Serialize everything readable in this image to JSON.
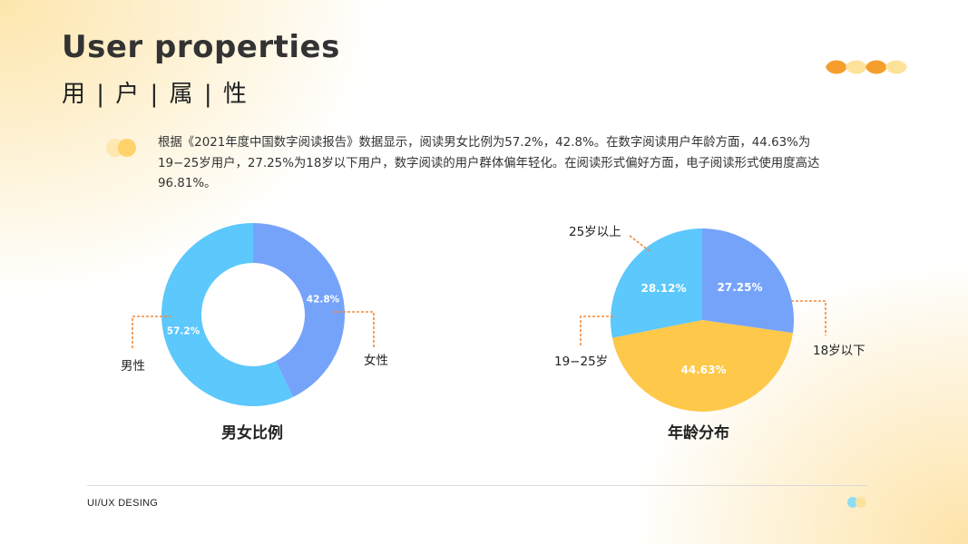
{
  "header": {
    "title_en": "User properties",
    "title_cn": "用 | 户 | 属 | 性"
  },
  "description": "根据《2021年度中国数字阅读报告》数据显示，阅读男女比例为57.2%，42.8%。在数字阅读用户年龄方面，44.63%为19−25岁用户，27.25%为18岁以下用户，数字阅读的用户群体偏年轻化。在阅读形式偏好方面，电子阅读形式使用度高达96.81%。",
  "footer": {
    "text": "UI/UX DESING"
  },
  "colors": {
    "blue": "#76a3fa",
    "cyan": "#5cc8fc",
    "yellow": "#fec84a",
    "leader": "#f08a3c",
    "deco_orange": "#f59e2e",
    "deco_light": "#fde29a"
  },
  "chart_data": [
    {
      "type": "pie",
      "variant": "donut",
      "title": "男女比例",
      "labels": [
        "女性",
        "男性"
      ],
      "values": [
        42.8,
        57.2
      ],
      "data_labels": [
        "42.8%",
        "57.2%"
      ],
      "colors": [
        "#76a3fa",
        "#5cc8fc"
      ]
    },
    {
      "type": "pie",
      "title": "年龄分布",
      "labels": [
        "18岁以下",
        "19−25岁",
        "25岁以上"
      ],
      "values": [
        27.25,
        44.63,
        28.12
      ],
      "data_labels": [
        "27.25%",
        "44.63%",
        "28.12%"
      ],
      "colors": [
        "#76a3fa",
        "#fec84a",
        "#5cc8fc"
      ]
    }
  ]
}
